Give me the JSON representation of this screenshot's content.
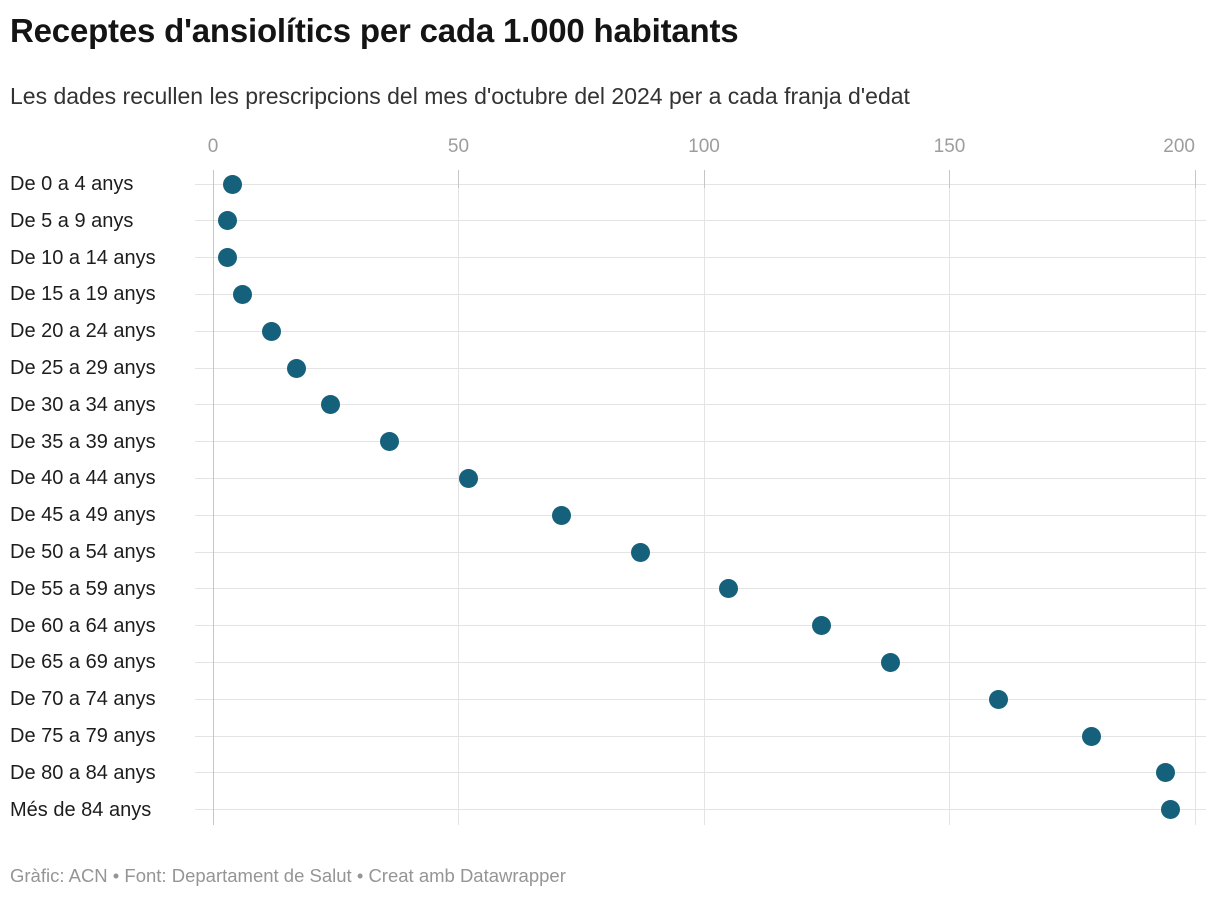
{
  "header": {
    "title": "Receptes d'ansiolítics per cada 1.000 habitants",
    "subtitle": "Les dades recullen les prescripcions del mes d'octubre del 2024 per a cada franja d'edat"
  },
  "footer": {
    "text": "Gràfic: ACN • Font: Departament de Salut • Creat amb Datawrapper"
  },
  "colors": {
    "dot": "#15607a",
    "grid_light": "#e4e4e4",
    "axis_gray": "#c6c6c6",
    "row_label": "#1d1d1d",
    "tick_label": "#9d9d9d",
    "footer_text": "#959595"
  },
  "chart_data": {
    "type": "scatter",
    "variant": "dot-plot",
    "title": "Receptes d'ansiolítics per cada 1.000 habitants",
    "subtitle": "Les dades recullen les prescripcions del mes d'octubre del 2024 per a cada franja d'edat",
    "xlabel": "",
    "ylabel": "",
    "xlim": [
      0,
      200
    ],
    "x_ticks": [
      0,
      50,
      100,
      150,
      200
    ],
    "grid": true,
    "categories": [
      "De 0 a 4 anys",
      "De 5 a 9 anys",
      "De 10 a 14 anys",
      "De 15 a 19 anys",
      "De 20 a 24 anys",
      "De 25 a 29 anys",
      "De 30 a 34 anys",
      "De 35 a 39 anys",
      "De 40 a 44 anys",
      "De 45 a 49 anys",
      "De 50 a 54 anys",
      "De 55 a 59 anys",
      "De 60 a 64 anys",
      "De 65 a 69 anys",
      "De 70 a 74 anys",
      "De 75 a 79 anys",
      "De 80 a 84 anys",
      "Més de 84 anys"
    ],
    "values": [
      4,
      3,
      3,
      6,
      12,
      17,
      24,
      36,
      52,
      71,
      87,
      105,
      124,
      138,
      160,
      179,
      194,
      195
    ]
  }
}
